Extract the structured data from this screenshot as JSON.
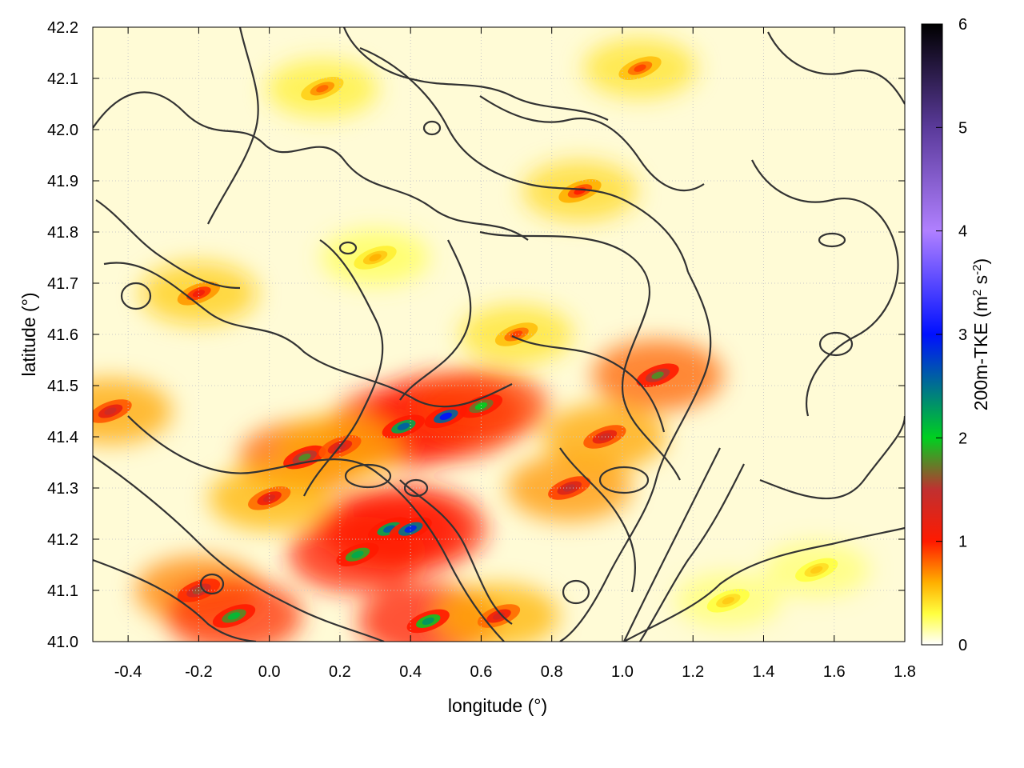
{
  "chart_data": {
    "type": "heatmap",
    "xlabel": "longitude (°)",
    "ylabel": "latitude (°)",
    "colorbar_label": "200m-TKE (m² s⁻²)",
    "colorbar_label_parts": {
      "main": "200m-TKE (m",
      "sup1": "2",
      "mid": " s",
      "sup2": "-2",
      "end": ")"
    },
    "xlim": [
      -0.5,
      1.8
    ],
    "ylim": [
      41.0,
      42.2
    ],
    "zlim": [
      0,
      6
    ],
    "x_ticks": [
      "-0.4",
      "-0.2",
      "0.0",
      "0.2",
      "0.4",
      "0.6",
      "0.8",
      "1.0",
      "1.2",
      "1.4",
      "1.6",
      "1.8"
    ],
    "y_ticks": [
      "41.0",
      "41.1",
      "41.2",
      "41.3",
      "41.4",
      "41.5",
      "41.6",
      "41.7",
      "41.8",
      "41.9",
      "42.0",
      "42.1",
      "42.2"
    ],
    "colorbar_ticks": [
      "0",
      "1",
      "2",
      "3",
      "4",
      "5",
      "6"
    ],
    "grid": true,
    "colorscale": [
      {
        "v": 0.0,
        "color": "#ffffff"
      },
      {
        "v": 0.3,
        "color": "#ffff40"
      },
      {
        "v": 0.6,
        "color": "#ffb000"
      },
      {
        "v": 1.0,
        "color": "#ff1a00"
      },
      {
        "v": 1.5,
        "color": "#c03030"
      },
      {
        "v": 2.0,
        "color": "#00d020"
      },
      {
        "v": 3.0,
        "color": "#0010ff"
      },
      {
        "v": 4.0,
        "color": "#b080ff"
      },
      {
        "v": 5.0,
        "color": "#5a3a9a"
      },
      {
        "v": 6.0,
        "color": "#000000"
      }
    ],
    "hotspots": [
      {
        "lon": 0.5,
        "lat": 41.44,
        "value": 3.0
      },
      {
        "lon": 0.38,
        "lat": 41.42,
        "value": 2.6
      },
      {
        "lon": 0.6,
        "lat": 41.46,
        "value": 2.0
      },
      {
        "lon": 0.34,
        "lat": 41.22,
        "value": 2.6
      },
      {
        "lon": 0.4,
        "lat": 41.22,
        "value": 2.9
      },
      {
        "lon": 0.25,
        "lat": 41.17,
        "value": 2.2
      },
      {
        "lon": 0.1,
        "lat": 41.36,
        "value": 1.8
      },
      {
        "lon": 0.2,
        "lat": 41.38,
        "value": 1.4
      },
      {
        "lon": 0.0,
        "lat": 41.28,
        "value": 1.3
      },
      {
        "lon": -0.2,
        "lat": 41.1,
        "value": 1.6
      },
      {
        "lon": -0.1,
        "lat": 41.05,
        "value": 2.1
      },
      {
        "lon": -0.45,
        "lat": 41.45,
        "value": 1.4
      },
      {
        "lon": -0.2,
        "lat": 41.68,
        "value": 1.1
      },
      {
        "lon": 0.45,
        "lat": 41.04,
        "value": 2.3
      },
      {
        "lon": 0.65,
        "lat": 41.05,
        "value": 1.3
      },
      {
        "lon": 0.85,
        "lat": 41.3,
        "value": 1.5
      },
      {
        "lon": 0.95,
        "lat": 41.4,
        "value": 1.4
      },
      {
        "lon": 1.1,
        "lat": 41.52,
        "value": 1.8
      },
      {
        "lon": 0.88,
        "lat": 41.88,
        "value": 1.0
      },
      {
        "lon": 1.05,
        "lat": 42.12,
        "value": 0.9
      },
      {
        "lon": 0.15,
        "lat": 42.08,
        "value": 0.8
      },
      {
        "lon": 0.7,
        "lat": 41.6,
        "value": 0.9
      },
      {
        "lon": 0.3,
        "lat": 41.75,
        "value": 0.6
      },
      {
        "lon": 1.55,
        "lat": 41.14,
        "value": 0.5
      },
      {
        "lon": 1.3,
        "lat": 41.08,
        "value": 0.5
      }
    ]
  }
}
